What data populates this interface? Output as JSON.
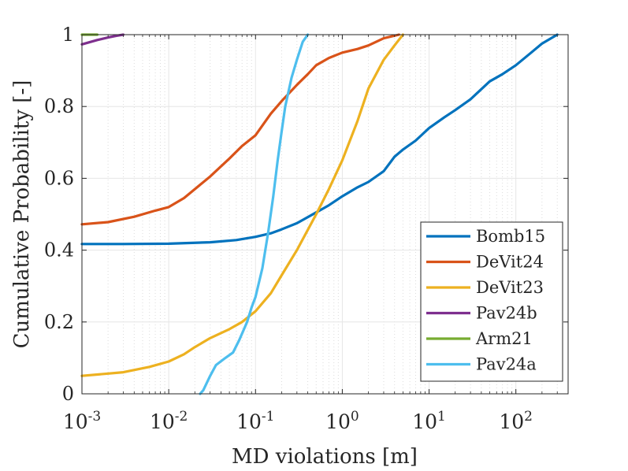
{
  "chart_data": {
    "type": "line",
    "title": "",
    "xlabel": "MD violations [m]",
    "ylabel": "Cumulative Probability [-]",
    "xscale": "log",
    "xlim": [
      0.001,
      400
    ],
    "ylim": [
      0,
      1
    ],
    "grid": true,
    "legend_position": "bottom-right",
    "x_ticks": [
      {
        "value": 0.001,
        "base": "10",
        "exp": "-3"
      },
      {
        "value": 0.01,
        "base": "10",
        "exp": "-2"
      },
      {
        "value": 0.1,
        "base": "10",
        "exp": "-1"
      },
      {
        "value": 1,
        "base": "10",
        "exp": "0"
      },
      {
        "value": 10,
        "base": "10",
        "exp": "1"
      },
      {
        "value": 100,
        "base": "10",
        "exp": "2"
      }
    ],
    "y_ticks": [
      {
        "value": 0,
        "label": "0"
      },
      {
        "value": 0.2,
        "label": "0.2"
      },
      {
        "value": 0.4,
        "label": "0.4"
      },
      {
        "value": 0.6,
        "label": "0.6"
      },
      {
        "value": 0.8,
        "label": "0.8"
      },
      {
        "value": 1,
        "label": "1"
      }
    ],
    "series": [
      {
        "name": "Bomb15",
        "color": "#0072BD",
        "points": [
          [
            0.001,
            0.417
          ],
          [
            0.003,
            0.417
          ],
          [
            0.01,
            0.418
          ],
          [
            0.03,
            0.422
          ],
          [
            0.06,
            0.428
          ],
          [
            0.1,
            0.437
          ],
          [
            0.15,
            0.447
          ],
          [
            0.2,
            0.458
          ],
          [
            0.3,
            0.475
          ],
          [
            0.5,
            0.505
          ],
          [
            0.7,
            0.525
          ],
          [
            1,
            0.55
          ],
          [
            1.5,
            0.575
          ],
          [
            2,
            0.59
          ],
          [
            3,
            0.62
          ],
          [
            4,
            0.66
          ],
          [
            5,
            0.68
          ],
          [
            7,
            0.705
          ],
          [
            10,
            0.74
          ],
          [
            15,
            0.77
          ],
          [
            20,
            0.79
          ],
          [
            30,
            0.82
          ],
          [
            50,
            0.87
          ],
          [
            70,
            0.89
          ],
          [
            100,
            0.915
          ],
          [
            150,
            0.95
          ],
          [
            200,
            0.975
          ],
          [
            300,
            1.0
          ]
        ]
      },
      {
        "name": "DeVit24",
        "color": "#D95319",
        "points": [
          [
            0.001,
            0.472
          ],
          [
            0.002,
            0.478
          ],
          [
            0.004,
            0.493
          ],
          [
            0.007,
            0.51
          ],
          [
            0.01,
            0.52
          ],
          [
            0.015,
            0.545
          ],
          [
            0.02,
            0.57
          ],
          [
            0.03,
            0.605
          ],
          [
            0.05,
            0.655
          ],
          [
            0.07,
            0.69
          ],
          [
            0.1,
            0.72
          ],
          [
            0.15,
            0.78
          ],
          [
            0.2,
            0.815
          ],
          [
            0.3,
            0.86
          ],
          [
            0.4,
            0.89
          ],
          [
            0.5,
            0.915
          ],
          [
            0.7,
            0.935
          ],
          [
            1,
            0.95
          ],
          [
            1.5,
            0.96
          ],
          [
            2,
            0.97
          ],
          [
            3,
            0.99
          ],
          [
            4.5,
            1.0
          ]
        ]
      },
      {
        "name": "DeVit23",
        "color": "#EDB120",
        "points": [
          [
            0.001,
            0.05
          ],
          [
            0.003,
            0.06
          ],
          [
            0.006,
            0.075
          ],
          [
            0.01,
            0.09
          ],
          [
            0.015,
            0.11
          ],
          [
            0.02,
            0.13
          ],
          [
            0.03,
            0.155
          ],
          [
            0.05,
            0.18
          ],
          [
            0.07,
            0.2
          ],
          [
            0.1,
            0.23
          ],
          [
            0.15,
            0.28
          ],
          [
            0.2,
            0.33
          ],
          [
            0.3,
            0.4
          ],
          [
            0.5,
            0.5
          ],
          [
            0.7,
            0.57
          ],
          [
            1,
            0.65
          ],
          [
            1.5,
            0.76
          ],
          [
            2,
            0.85
          ],
          [
            3,
            0.93
          ],
          [
            4,
            0.97
          ],
          [
            5,
            1.0
          ]
        ]
      },
      {
        "name": "Pav24b",
        "color": "#7E2F8E",
        "points": [
          [
            0.001,
            0.973
          ],
          [
            0.0015,
            0.985
          ],
          [
            0.002,
            0.992
          ],
          [
            0.0025,
            0.997
          ],
          [
            0.003,
            1.0
          ]
        ]
      },
      {
        "name": "Arm21",
        "color": "#77AC30",
        "points": [
          [
            0.001,
            1.0
          ],
          [
            0.0015,
            1.0
          ]
        ]
      },
      {
        "name": "Pav24a",
        "color": "#4DBEEE",
        "points": [
          [
            0.023,
            0.0
          ],
          [
            0.025,
            0.01
          ],
          [
            0.03,
            0.05
          ],
          [
            0.035,
            0.08
          ],
          [
            0.045,
            0.1
          ],
          [
            0.055,
            0.115
          ],
          [
            0.065,
            0.15
          ],
          [
            0.08,
            0.2
          ],
          [
            0.09,
            0.24
          ],
          [
            0.1,
            0.27
          ],
          [
            0.12,
            0.35
          ],
          [
            0.14,
            0.45
          ],
          [
            0.16,
            0.55
          ],
          [
            0.18,
            0.65
          ],
          [
            0.2,
            0.73
          ],
          [
            0.22,
            0.8
          ],
          [
            0.26,
            0.88
          ],
          [
            0.3,
            0.93
          ],
          [
            0.35,
            0.98
          ],
          [
            0.4,
            1.0
          ]
        ]
      }
    ]
  }
}
